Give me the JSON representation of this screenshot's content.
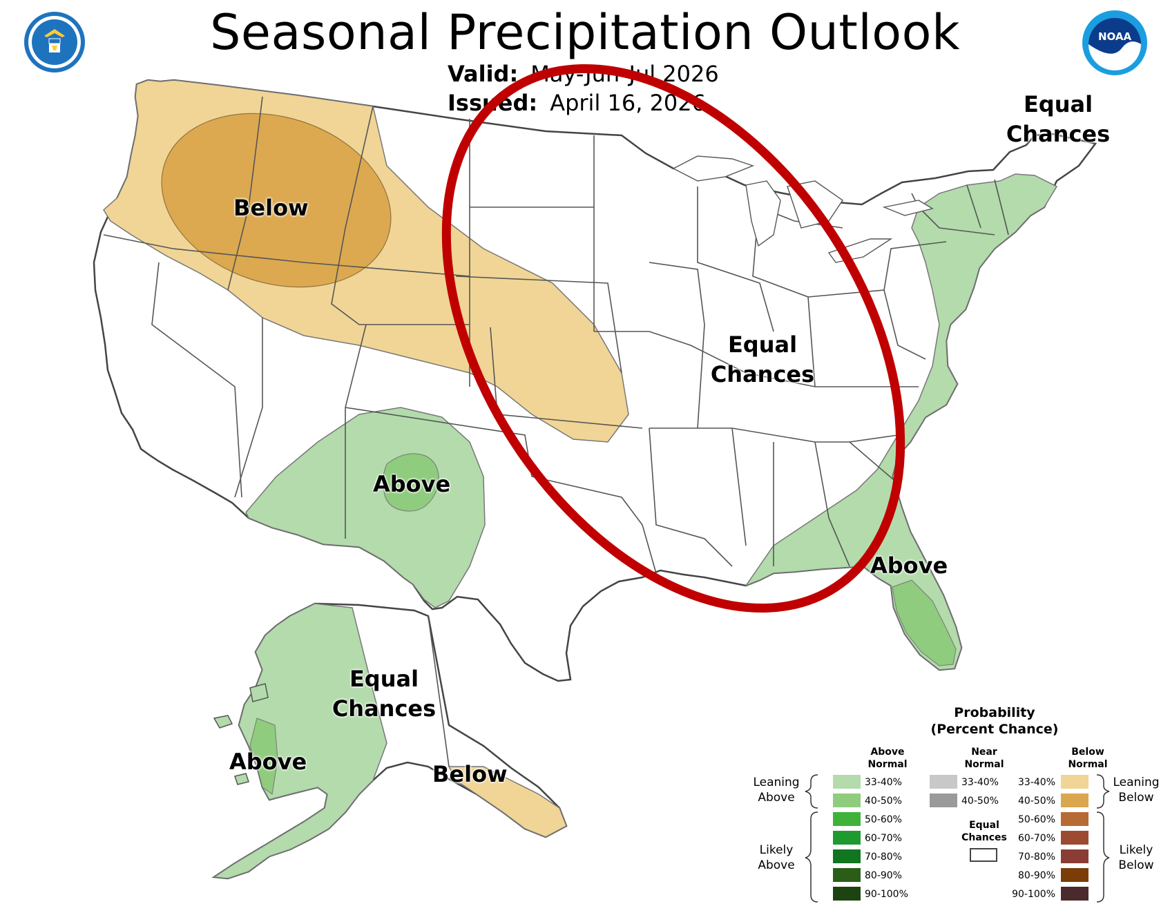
{
  "header": {
    "title": "Seasonal Precipitation Outlook",
    "valid_key": "Valid:",
    "valid_value": "May-Jun-Jul 2026",
    "issued_key": "Issued:",
    "issued_value": "April 16, 2026"
  },
  "logos": {
    "left": "department-of-commerce-seal",
    "right": "noaa-logo",
    "noaa_text": "NOAA"
  },
  "map_labels": {
    "nw_below": "Below",
    "sw_above": "Above",
    "central_equal_1": "Equal",
    "central_equal_2": "Chances",
    "ne_equal_1": "Equal",
    "ne_equal_2": "Chances",
    "se_above": "Above",
    "ak_equal_1": "Equal",
    "ak_equal_2": "Chances",
    "ak_above": "Above",
    "ak_below": "Below"
  },
  "colors": {
    "leaning_above": "#b3dbac",
    "above_40_50": "#8fcc7e",
    "leaning_below": "#f0d596",
    "below_40_50": "#dba74e",
    "annotation_ring": "#c00000",
    "state_lines": "#555555"
  },
  "legend": {
    "title_1": "Probability",
    "title_2": "(Percent Chance)",
    "above_head_1": "Above",
    "above_head_2": "Normal",
    "near_head_1": "Near",
    "near_head_2": "Normal",
    "below_head_1": "Below",
    "below_head_2": "Normal",
    "leaning_above_1": "Leaning",
    "leaning_above_2": "Above",
    "likely_above_1": "Likely",
    "likely_above_2": "Above",
    "leaning_below_1": "Leaning",
    "leaning_below_2": "Below",
    "likely_below_1": "Likely",
    "likely_below_2": "Below",
    "equal_1": "Equal",
    "equal_2": "Chances",
    "above_rows": [
      {
        "label": "33-40%",
        "color": "#b3dbac"
      },
      {
        "label": "40-50%",
        "color": "#8fcc7e"
      },
      {
        "label": "50-60%",
        "color": "#3fb23a"
      },
      {
        "label": "60-70%",
        "color": "#1e9a2e"
      },
      {
        "label": "70-80%",
        "color": "#10761f"
      },
      {
        "label": "80-90%",
        "color": "#2a5e18"
      },
      {
        "label": "90-100%",
        "color": "#1d4410"
      }
    ],
    "near_rows": [
      {
        "label": "33-40%",
        "color": "#c8c8c8"
      },
      {
        "label": "40-50%",
        "color": "#9a9a9a"
      }
    ],
    "below_rows": [
      {
        "label": "33-40%",
        "color": "#f0d596"
      },
      {
        "label": "40-50%",
        "color": "#dba74e"
      },
      {
        "label": "50-60%",
        "color": "#b86a35"
      },
      {
        "label": "60-70%",
        "color": "#9c4b30"
      },
      {
        "label": "70-80%",
        "color": "#8a3d34"
      },
      {
        "label": "80-90%",
        "color": "#7b3d08"
      },
      {
        "label": "90-100%",
        "color": "#4a2a2c"
      }
    ]
  }
}
